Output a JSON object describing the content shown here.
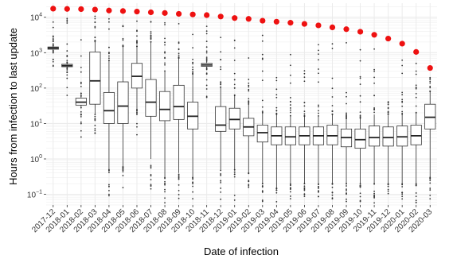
{
  "chart_data": {
    "type": "box",
    "title": "",
    "xlabel": "Date of infection",
    "ylabel": "Hours from infection to last update",
    "y_scale": "log10",
    "y_range": [
      0.05,
      25000
    ],
    "y_ticks": [
      {
        "value": 0.1,
        "base": "10",
        "exp": "−1"
      },
      {
        "value": 1,
        "base": "10",
        "exp": "0"
      },
      {
        "value": 10,
        "base": "10",
        "exp": "1"
      },
      {
        "value": 100,
        "base": "10",
        "exp": "2"
      },
      {
        "value": 1000,
        "base": "10",
        "exp": "3"
      },
      {
        "value": 10000,
        "base": "10",
        "exp": "4"
      }
    ],
    "grid": true,
    "legend": "none",
    "colors": {
      "max_point": "#ee1111",
      "box": "#333333",
      "grid": "#ebebeb"
    },
    "categories": [
      "2017-12",
      "2018-01",
      "2018-02",
      "2018-03",
      "2018-04",
      "2018-05",
      "2018-06",
      "2018-07",
      "2018-08",
      "2018-09",
      "2018-10",
      "2018-11",
      "2018-12",
      "2019-01",
      "2019-02",
      "2019-03",
      "2019-04",
      "2019-05",
      "2019-06",
      "2019-07",
      "2019-08",
      "2019-09",
      "2019-10",
      "2019-11",
      "2019-12",
      "2020-01",
      "2020-02",
      "2020-03"
    ],
    "boxes": [
      {
        "q1": 1250,
        "median": 1350,
        "q3": 1450,
        "lower": 1150,
        "upper": 1550
      },
      {
        "q1": 400,
        "median": 430,
        "q3": 470,
        "lower": 380,
        "upper": 500
      },
      {
        "q1": 33,
        "median": 40,
        "q3": 52,
        "lower": 28,
        "upper": 58
      },
      {
        "q1": 35,
        "median": 160,
        "q3": 1050,
        "lower": 18,
        "upper": 2000
      },
      {
        "q1": 10,
        "median": 23,
        "q3": 75,
        "lower": 0.5,
        "upper": 600
      },
      {
        "q1": 10,
        "median": 31,
        "q3": 150,
        "lower": 0.6,
        "upper": 1500
      },
      {
        "q1": 100,
        "median": 215,
        "q3": 500,
        "lower": 25,
        "upper": 1500
      },
      {
        "q1": 16,
        "median": 40,
        "q3": 175,
        "lower": 1,
        "upper": 2000
      },
      {
        "q1": 12,
        "median": 25,
        "q3": 80,
        "lower": 0.3,
        "upper": 300
      },
      {
        "q1": 13,
        "median": 30,
        "q3": 120,
        "lower": 0.4,
        "upper": 700
      },
      {
        "q1": 7,
        "median": 16,
        "q3": 40,
        "lower": 0.3,
        "upper": 250
      },
      {
        "q1": 410,
        "median": 450,
        "q3": 500,
        "lower": 380,
        "upper": 580
      },
      {
        "q1": 6,
        "median": 9,
        "q3": 30,
        "lower": 0.5,
        "upper": 100
      },
      {
        "q1": 7,
        "median": 13,
        "q3": 27,
        "lower": 0.5,
        "upper": 60
      },
      {
        "q1": 4.5,
        "median": 8,
        "q3": 14,
        "lower": 0.4,
        "upper": 35
      },
      {
        "q1": 3,
        "median": 5.5,
        "q3": 9,
        "lower": 0.2,
        "upper": 20
      },
      {
        "q1": 2.5,
        "median": 4.5,
        "q3": 8,
        "lower": 0.15,
        "upper": 18
      },
      {
        "q1": 2.5,
        "median": 4.2,
        "q3": 8,
        "lower": 0.2,
        "upper": 16
      },
      {
        "q1": 2.5,
        "median": 4.5,
        "q3": 8,
        "lower": 0.2,
        "upper": 16
      },
      {
        "q1": 2.5,
        "median": 4.5,
        "q3": 8,
        "lower": 0.2,
        "upper": 16
      },
      {
        "q1": 2.5,
        "median": 4.5,
        "q3": 9,
        "lower": 0.2,
        "upper": 18
      },
      {
        "q1": 2.2,
        "median": 4,
        "q3": 7,
        "lower": 0.2,
        "upper": 14
      },
      {
        "q1": 2,
        "median": 3.5,
        "q3": 7,
        "lower": 0.2,
        "upper": 14
      },
      {
        "q1": 2.3,
        "median": 4,
        "q3": 8.5,
        "lower": 0.2,
        "upper": 18
      },
      {
        "q1": 2.3,
        "median": 4,
        "q3": 8,
        "lower": 0.2,
        "upper": 17
      },
      {
        "q1": 2.3,
        "median": 4.2,
        "q3": 8.5,
        "lower": 0.2,
        "upper": 18
      },
      {
        "q1": 2.5,
        "median": 4.5,
        "q3": 9,
        "lower": 0.2,
        "upper": 20
      },
      {
        "q1": 7,
        "median": 15,
        "q3": 35,
        "lower": 0.3,
        "upper": 80
      }
    ],
    "max_values": [
      17500,
      17200,
      17000,
      16500,
      15500,
      15000,
      14500,
      13800,
      13200,
      12500,
      12000,
      11500,
      10500,
      9500,
      9000,
      8000,
      7500,
      7000,
      6500,
      5900,
      5200,
      4600,
      3900,
      3200,
      2500,
      1800,
      1050,
      370
    ]
  }
}
